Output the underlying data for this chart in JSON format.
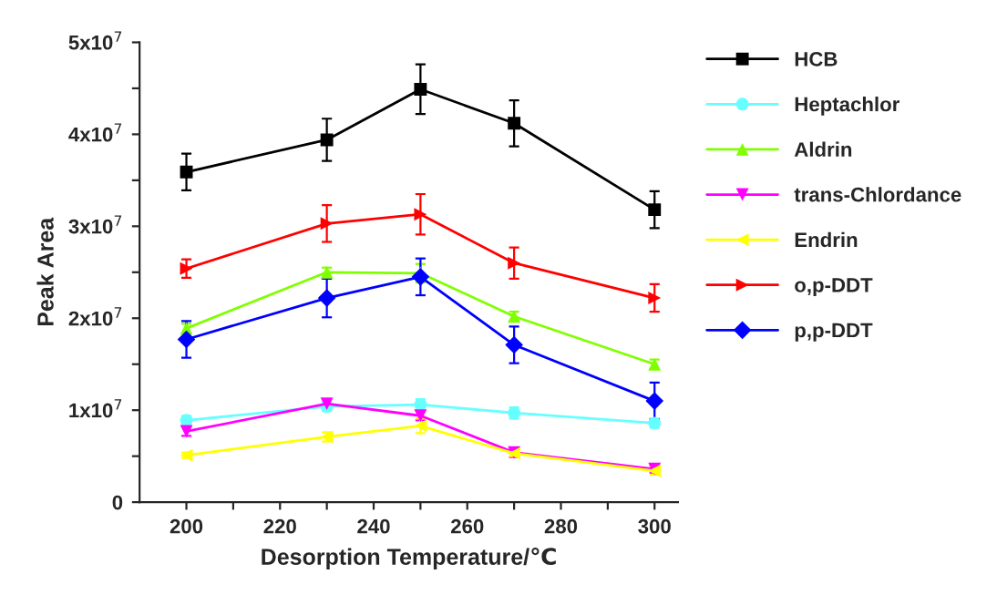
{
  "chart_data": {
    "type": "line",
    "xlabel": "Desorption Temperature/℃",
    "ylabel": "Peak Area",
    "x": [
      200,
      230,
      250,
      270,
      300
    ],
    "xlim": [
      190,
      305
    ],
    "xticks": [
      200,
      {
        "value": 210,
        "label": null
      },
      220,
      {
        "value": 230,
        "label": null
      },
      240,
      {
        "value": 250,
        "label": null
      },
      260,
      {
        "value": 270,
        "label": null
      },
      280,
      {
        "value": 290,
        "label": null
      },
      300
    ],
    "ylim": [
      0,
      50000000
    ],
    "yticks": [
      {
        "value": 0,
        "label": "0"
      },
      {
        "value": 5000000,
        "label": null
      },
      {
        "value": 10000000,
        "label": "1x10$^{7}$"
      },
      {
        "value": 15000000,
        "label": null
      },
      {
        "value": 20000000,
        "label": "2x10$^{7}$"
      },
      {
        "value": 25000000,
        "label": null
      },
      {
        "value": 30000000,
        "label": "3x10$^{7}$"
      },
      {
        "value": 35000000,
        "label": null
      },
      {
        "value": 40000000,
        "label": "4x10$^{7}$"
      },
      {
        "value": 45000000,
        "label": null
      },
      {
        "value": 50000000,
        "label": "5x10$^{7}$"
      }
    ],
    "grid": false,
    "legend": "right",
    "series": [
      {
        "name": "HCB",
        "color": "#000000",
        "marker": "square",
        "values": [
          35900000,
          39400000,
          44900000,
          41200000,
          31800000
        ],
        "errors": [
          2000000,
          2300000,
          2700000,
          2500000,
          2000000
        ]
      },
      {
        "name": "Heptachlor",
        "color": "#66ffff",
        "marker": "circle",
        "values": [
          8900000,
          10400000,
          10600000,
          9700000,
          8600000
        ],
        "errors": [
          500000,
          500000,
          600000,
          600000,
          500000
        ]
      },
      {
        "name": "Aldrin",
        "color": "#80ff00",
        "marker": "triangle",
        "values": [
          18900000,
          25000000,
          24900000,
          20200000,
          15000000
        ],
        "errors": [
          500000,
          500000,
          1000000,
          500000,
          500000
        ]
      },
      {
        "name": "trans-Chlordance",
        "color": "#ff00ff",
        "marker": "triangle-down",
        "values": [
          7700000,
          10700000,
          9400000,
          5400000,
          3600000
        ],
        "errors": [
          500000,
          500000,
          500000,
          500000,
          400000
        ]
      },
      {
        "name": "Endrin",
        "color": "#ffff00",
        "marker": "triangle-left",
        "values": [
          5100000,
          7100000,
          8300000,
          5300000,
          3400000
        ],
        "errors": [
          300000,
          500000,
          800000,
          300000,
          400000
        ]
      },
      {
        "name": "o,p-DDT",
        "color": "#ff0000",
        "marker": "triangle-right",
        "values": [
          25400000,
          30300000,
          31300000,
          26000000,
          22200000
        ],
        "errors": [
          1000000,
          2000000,
          2200000,
          1700000,
          1500000
        ]
      },
      {
        "name": "p,p-DDT",
        "color": "#0000ff",
        "marker": "diamond",
        "values": [
          17700000,
          22200000,
          24500000,
          17100000,
          11000000
        ],
        "errors": [
          2000000,
          2100000,
          2000000,
          2000000,
          2000000
        ]
      }
    ]
  }
}
